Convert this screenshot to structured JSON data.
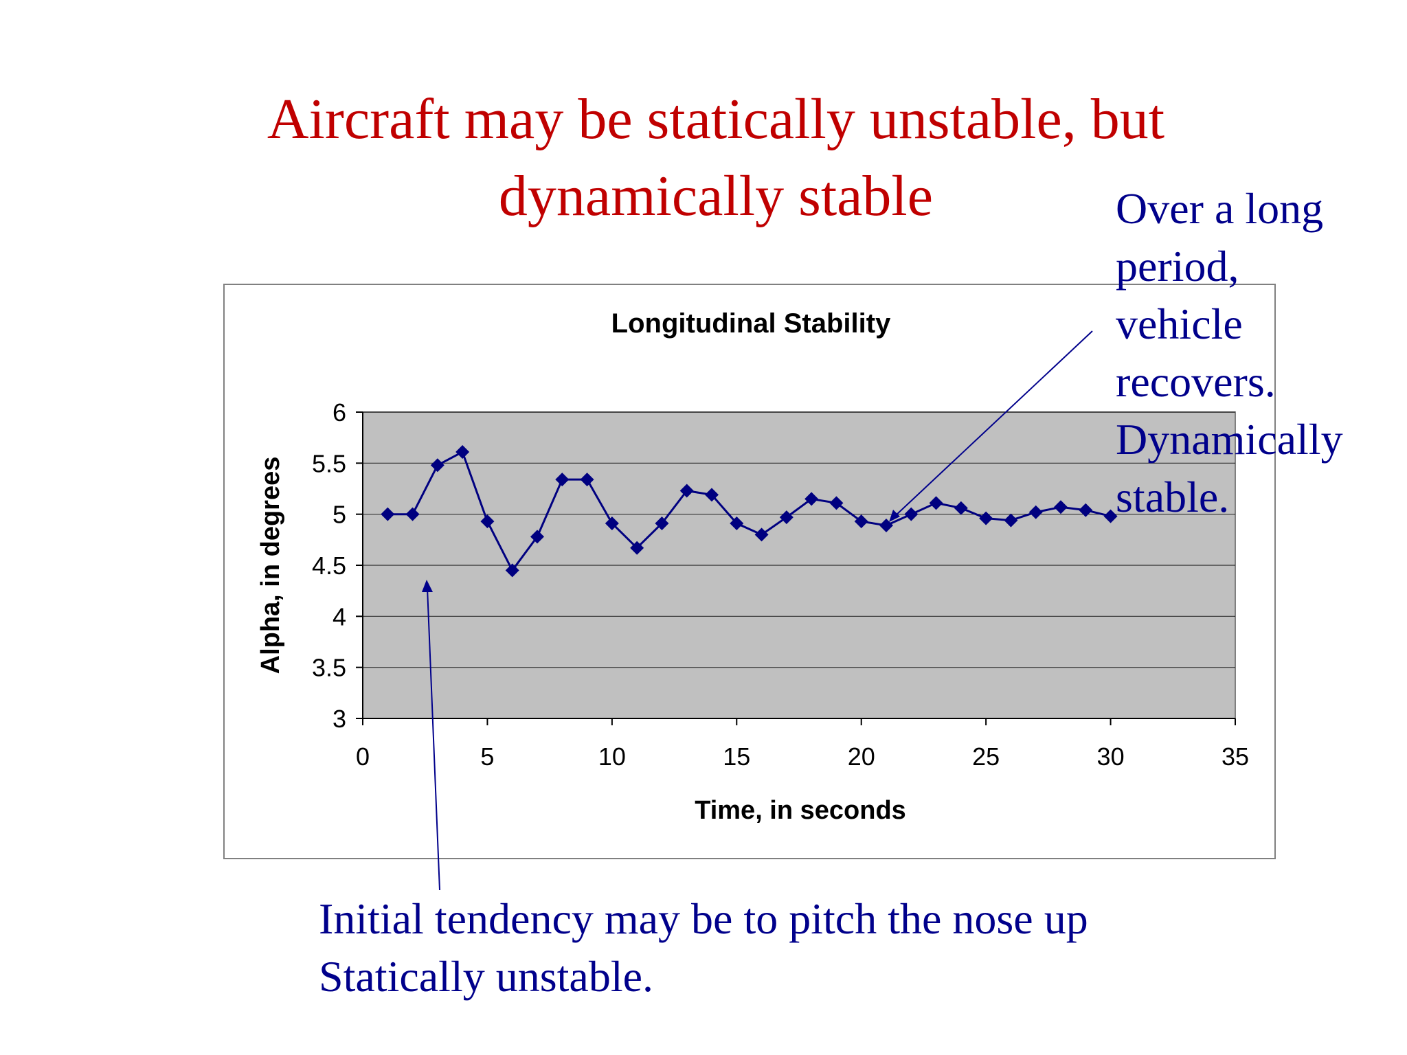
{
  "slide": {
    "title_lines": [
      "Aircraft may be statically unstable, but",
      "dynamically stable"
    ],
    "note_right_lines": [
      "Over a long",
      "period,",
      "vehicle",
      "recovers.",
      "Dynamically",
      "stable."
    ],
    "note_bottom_lines": [
      "Initial tendency may be to pitch the nose up",
      "Statically unstable."
    ],
    "colors": {
      "title": "#c00000",
      "notes": "#00008b",
      "series": "#000080",
      "plot_background": "#c0c0c0"
    }
  },
  "chart_data": {
    "type": "line",
    "title": "Longitudinal Stability",
    "xlabel": "Time, in seconds",
    "ylabel": "Alpha, in degrees",
    "xlim": [
      0,
      35
    ],
    "ylim": [
      3,
      6
    ],
    "xticks": [
      0,
      5,
      10,
      15,
      20,
      25,
      30,
      35
    ],
    "yticks": [
      3,
      3.5,
      4,
      4.5,
      5,
      5.5,
      6
    ],
    "x_tick_labels": [
      "0",
      "5",
      "10",
      "15",
      "20",
      "25",
      "30",
      "35"
    ],
    "y_tick_labels": [
      "3",
      "3.5",
      "4",
      "4.5",
      "5",
      "5.5",
      "6"
    ],
    "grid": "horizontal",
    "legend": "none",
    "marker": "diamond",
    "series": [
      {
        "x": [
          1,
          2,
          3,
          4,
          5,
          6,
          7,
          8,
          9,
          10,
          11,
          12,
          13,
          14,
          15,
          16,
          17,
          18,
          19,
          20,
          21,
          22,
          23,
          24,
          25,
          26,
          27,
          28,
          29,
          30
        ],
        "values": [
          5.0,
          5.0,
          5.48,
          5.61,
          4.93,
          4.45,
          4.78,
          5.34,
          5.34,
          4.91,
          4.67,
          4.91,
          5.23,
          5.19,
          4.91,
          4.8,
          4.97,
          5.15,
          5.11,
          4.93,
          4.89,
          5.0,
          5.11,
          5.06,
          4.96,
          4.94,
          5.02,
          5.07,
          5.04,
          4.98
        ]
      }
    ]
  }
}
